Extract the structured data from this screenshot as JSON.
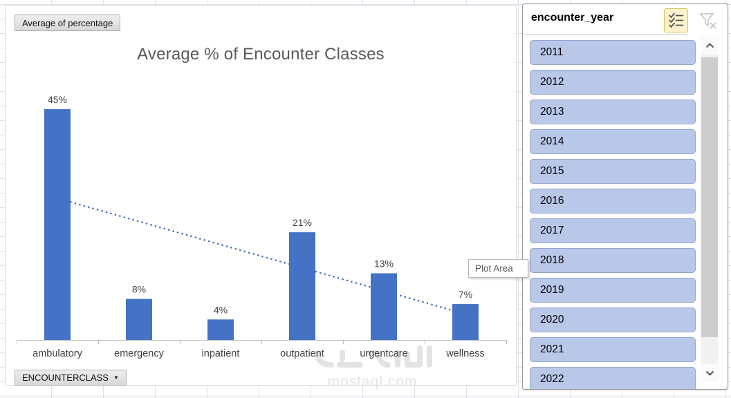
{
  "chart_data": {
    "type": "bar",
    "title": "Average % of Encounter Classes",
    "categories": [
      "ambulatory",
      "emergency",
      "inpatient",
      "outpatient",
      "urgentcare",
      "wellness"
    ],
    "values": [
      45,
      8,
      4,
      21,
      13,
      7
    ],
    "value_labels": [
      "45%",
      "8%",
      "4%",
      "21%",
      "13%",
      "7%"
    ],
    "series_name": "Average of percentage",
    "ylabel": "",
    "xlabel": "",
    "ylim": [
      0,
      47
    ],
    "grid": "off",
    "legend": "none",
    "bar_color": "#4472C4",
    "label_color": "#404040",
    "axis_color": "#BFBFBF",
    "title_color": "#595959",
    "trendline": {
      "type": "linear",
      "style": "dotted",
      "color": "#4472C4"
    }
  },
  "pivot": {
    "value_button_label": "Average of percentage",
    "axis_button_label": "ENCOUNTERCLASS",
    "axis_button_arrow": "▼"
  },
  "tooltip": {
    "text": "Plot Area"
  },
  "slicer": {
    "title": "encounter_year",
    "items": [
      "2011",
      "2012",
      "2013",
      "2014",
      "2015",
      "2016",
      "2017",
      "2018",
      "2019",
      "2020",
      "2021",
      "2022"
    ],
    "icons": [
      "multi-select-icon",
      "clear-filter-icon"
    ],
    "item_fill": "#B9C8E9",
    "item_border": "#93A5CF"
  },
  "watermark": {
    "logo_text": "مستقل",
    "domain": "mostaql.com"
  }
}
